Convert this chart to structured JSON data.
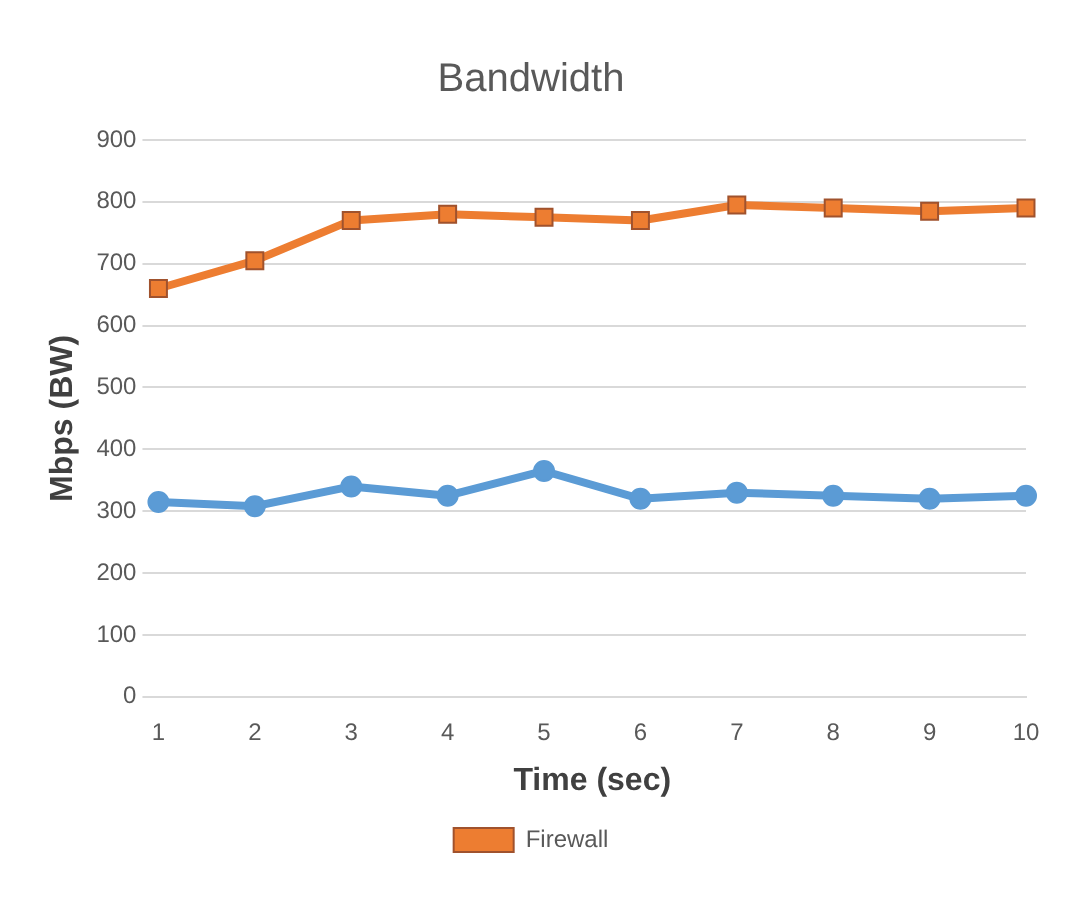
{
  "chart_data": {
    "type": "line",
    "title": "Bandwidth",
    "xlabel": "Time (sec)",
    "ylabel": "Mbps (BW)",
    "categories": [
      "1",
      "2",
      "3",
      "4",
      "5",
      "6",
      "7",
      "8",
      "9",
      "10"
    ],
    "series": [
      {
        "color": "#5b9bd5",
        "marker": "circle",
        "values": [
          315,
          308,
          340,
          325,
          365,
          320,
          330,
          325,
          320,
          325
        ]
      },
      {
        "name": "Firewall",
        "color": "#ed7d31",
        "marker": "square",
        "values": [
          660,
          705,
          770,
          780,
          775,
          770,
          795,
          790,
          785,
          790
        ]
      }
    ],
    "ylim": [
      0,
      900
    ],
    "yticks": [
      0,
      100,
      200,
      300,
      400,
      500,
      600,
      700,
      800,
      900
    ],
    "grid": "y",
    "legend": "bottom"
  }
}
